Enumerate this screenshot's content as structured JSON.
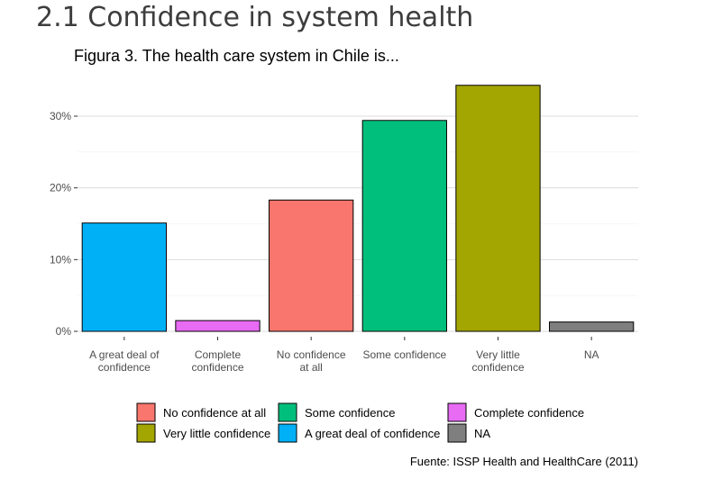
{
  "slide_title": "2.1 Confidence in system health",
  "caption": "Fuente: ISSP Health and HealthCare (2011)",
  "chart_data": {
    "type": "bar",
    "title": "Figura 3. The health care system in Chile is...",
    "xlabel": "",
    "ylabel": "",
    "categories": [
      [
        "A great deal of",
        "confidence"
      ],
      [
        "Complete",
        "confidence"
      ],
      [
        "No confidence",
        "at all"
      ],
      [
        "Some confidence"
      ],
      [
        "Very little",
        "confidence"
      ],
      [
        "NA"
      ]
    ],
    "values": [
      15.1,
      1.5,
      18.3,
      29.4,
      34.3,
      1.3
    ],
    "colors": [
      "#00B0F6",
      "#E76BF3",
      "#F8766D",
      "#00BF7D",
      "#A3A500",
      "#7F7F7F"
    ],
    "y_ticks": [
      0,
      10,
      20,
      30
    ],
    "y_tick_labels": [
      "0%",
      "10%",
      "20%",
      "30%"
    ],
    "ylim": [
      0,
      36
    ],
    "grid": "horizontal",
    "legend_position": "bottom",
    "legend": [
      {
        "label": "No confidence at all",
        "color": "#F8766D"
      },
      {
        "label": "Some confidence",
        "color": "#00BF7D"
      },
      {
        "label": "Complete confidence",
        "color": "#E76BF3"
      },
      {
        "label": "Very little confidence",
        "color": "#A3A500"
      },
      {
        "label": "A great deal of confidence",
        "color": "#00B0F6"
      },
      {
        "label": "NA",
        "color": "#7F7F7F"
      }
    ]
  }
}
